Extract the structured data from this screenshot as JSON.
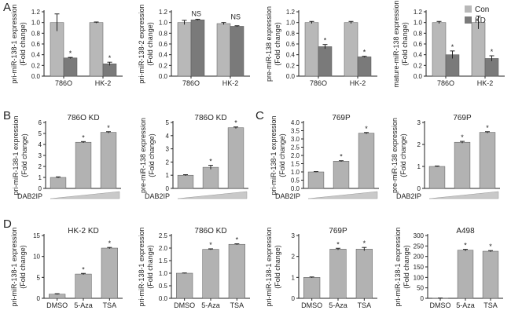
{
  "colors": {
    "con": "#b8b8b8",
    "kd": "#7a7a7a",
    "single": "#b2b2b2",
    "axis": "#222222"
  },
  "legend": {
    "items": [
      "Con",
      "KD"
    ]
  },
  "panel_labels": {
    "A": "A",
    "B": "B",
    "C": "C",
    "D": "D"
  },
  "chart_data": [
    {
      "id": "A1",
      "type": "bar",
      "grouped": true,
      "ylabel": [
        "pri-miR-138-1 expression",
        "(Fold change)"
      ],
      "ylim": [
        0,
        1.2
      ],
      "yticks": [
        "0.0",
        "0.2",
        "0.4",
        "0.6",
        "0.8",
        "1.0",
        "1.2"
      ],
      "categories": [
        "786O",
        "HK-2"
      ],
      "series": [
        {
          "name": "Con",
          "values": [
            1.0,
            1.0
          ],
          "errors": [
            0.16,
            0.01
          ]
        },
        {
          "name": "KD",
          "values": [
            0.34,
            0.23
          ],
          "errors": [
            0.01,
            0.03
          ]
        }
      ],
      "annotations": [
        [
          "",
          ""
        ],
        [
          "*",
          "*"
        ]
      ]
    },
    {
      "id": "A2",
      "type": "bar",
      "grouped": true,
      "ylabel": [
        "pri-miR-138-2 expression",
        "(Fold change)"
      ],
      "ylim": [
        0,
        1.2
      ],
      "yticks": [
        "0.0",
        "0.2",
        "0.4",
        "0.6",
        "0.8",
        "1.0",
        "1.2"
      ],
      "categories": [
        "786O",
        "HK-2"
      ],
      "series": [
        {
          "name": "Con",
          "values": [
            1.0,
            0.98
          ],
          "errors": [
            0.04,
            0.02
          ]
        },
        {
          "name": "KD",
          "values": [
            1.05,
            0.93
          ],
          "errors": [
            0.01,
            0.01
          ]
        }
      ],
      "group_annotations": [
        "NS",
        "NS"
      ]
    },
    {
      "id": "A3",
      "type": "bar",
      "grouped": true,
      "ylabel": [
        "pre-miR-138 expression",
        "(Fold change)"
      ],
      "ylim": [
        0,
        1.2
      ],
      "yticks": [
        "0.0",
        "0.2",
        "0.4",
        "0.6",
        "0.8",
        "1.0",
        "1.2"
      ],
      "categories": [
        "786O",
        "HK-2"
      ],
      "series": [
        {
          "name": "Con",
          "values": [
            1.0,
            1.0
          ],
          "errors": [
            0.02,
            0.02
          ]
        },
        {
          "name": "KD",
          "values": [
            0.55,
            0.36
          ],
          "errors": [
            0.04,
            0.01
          ]
        }
      ],
      "annotations": [
        [
          "",
          ""
        ],
        [
          "*",
          "*"
        ]
      ]
    },
    {
      "id": "A4",
      "type": "bar",
      "grouped": true,
      "ylabel": [
        "mature-miR-138 expression",
        "(Fold change)"
      ],
      "ylim": [
        0,
        1.2
      ],
      "yticks": [
        "0.0",
        "0.2",
        "0.4",
        "0.6",
        "0.8",
        "1.0",
        "1.2"
      ],
      "categories": [
        "786O",
        "HK-2"
      ],
      "series": [
        {
          "name": "Con",
          "values": [
            1.0,
            1.0
          ],
          "errors": [
            0.02,
            0.12
          ]
        },
        {
          "name": "KD",
          "values": [
            0.4,
            0.33
          ],
          "errors": [
            0.07,
            0.05
          ]
        }
      ],
      "annotations": [
        [
          "",
          ""
        ],
        [
          "*",
          "*"
        ]
      ]
    },
    {
      "id": "B1",
      "type": "bar",
      "title": "786O KD",
      "ylabel": [
        "pri-miR-138-1 expression",
        "(Fold change)"
      ],
      "ylim": [
        0,
        6
      ],
      "yticks": [
        "0",
        "1",
        "2",
        "3",
        "4",
        "5",
        "6"
      ],
      "categories": [
        "",
        "",
        ""
      ],
      "values": [
        1.0,
        4.2,
        5.1
      ],
      "errors": [
        0.05,
        0.06,
        0.06
      ],
      "annotations": [
        "",
        "*",
        "*"
      ],
      "gradient_label": "DAB2IP"
    },
    {
      "id": "B2",
      "type": "bar",
      "title": "786O KD",
      "ylabel": [
        "pre-miR-138 expression",
        "(Fold change)"
      ],
      "ylim": [
        0,
        5
      ],
      "yticks": [
        "0",
        "1",
        "2",
        "3",
        "4",
        "5"
      ],
      "categories": [
        "",
        "",
        ""
      ],
      "values": [
        1.0,
        1.6,
        4.6
      ],
      "errors": [
        0.04,
        0.15,
        0.06
      ],
      "annotations": [
        "",
        "*",
        "*"
      ],
      "gradient_label": "DAB2IP"
    },
    {
      "id": "C1",
      "type": "bar",
      "title": "769P",
      "ylabel": [
        "pri-miR-138-1 expression",
        "(Fold change)"
      ],
      "ylim": [
        0,
        4
      ],
      "yticks": [
        "0.0",
        "0.5",
        "1.0",
        "1.5",
        "2.0",
        "2.5",
        "3.0",
        "3.5",
        "4.0"
      ],
      "categories": [
        "",
        "",
        ""
      ],
      "values": [
        1.0,
        1.65,
        3.35
      ],
      "errors": [
        0.02,
        0.03,
        0.04
      ],
      "annotations": [
        "",
        "*",
        "*"
      ],
      "gradient_label": "DAB2IP"
    },
    {
      "id": "C2",
      "type": "bar",
      "title": "769P",
      "ylabel": [
        "pre-miR-138 expression",
        "(Fold change)"
      ],
      "ylim": [
        0,
        3
      ],
      "yticks": [
        "0",
        "1",
        "2",
        "3"
      ],
      "categories": [
        "",
        "",
        ""
      ],
      "values": [
        1.0,
        2.1,
        2.55
      ],
      "errors": [
        0.02,
        0.04,
        0.03
      ],
      "annotations": [
        "",
        "*",
        "*"
      ],
      "gradient_label": "DAB2IP"
    },
    {
      "id": "D1",
      "type": "bar",
      "title": "HK-2 KD",
      "ylabel": [
        "pri-miR-138-1 expression",
        "(Fold change)"
      ],
      "ylim": [
        0,
        15
      ],
      "yticks": [
        "0",
        "5",
        "10",
        "15"
      ],
      "categories": [
        "DMSO",
        "5-Aza",
        "TSA"
      ],
      "values": [
        1.0,
        5.8,
        12.0
      ],
      "errors": [
        0.1,
        0.15,
        0.15
      ],
      "annotations": [
        "",
        "*",
        "*"
      ]
    },
    {
      "id": "D2",
      "type": "bar",
      "title": "786O KD",
      "ylabel": [
        "pri-miR-138-1 expression",
        "(Fold change)"
      ],
      "ylim": [
        0,
        2.5
      ],
      "yticks": [
        "0.0",
        "0.5",
        "1.0",
        "1.5",
        "2.0",
        "2.5"
      ],
      "categories": [
        "DMSO",
        "5-Aza",
        "TSA"
      ],
      "values": [
        1.0,
        1.95,
        2.15
      ],
      "errors": [
        0.01,
        0.02,
        0.02
      ],
      "annotations": [
        "",
        "*",
        "*"
      ]
    },
    {
      "id": "D3",
      "type": "bar",
      "title": "769P",
      "ylabel": [
        "pri-miR-138-1 expression",
        "(Fold change)"
      ],
      "ylim": [
        0,
        3
      ],
      "yticks": [
        "0",
        "1",
        "2",
        "3"
      ],
      "categories": [
        "DMSO",
        "5-Aza",
        "TSA"
      ],
      "values": [
        1.0,
        2.35,
        2.35
      ],
      "errors": [
        0.02,
        0.04,
        0.08
      ],
      "annotations": [
        "",
        "*",
        "*"
      ]
    },
    {
      "id": "D4",
      "type": "bar",
      "title": "A498",
      "ylabel": [
        "pri-miR-138-1 expression",
        "(Fold change)"
      ],
      "ylim": [
        0,
        300
      ],
      "yticks": [
        "0",
        "50",
        "100",
        "150",
        "200",
        "250",
        "300"
      ],
      "categories": [
        "DMSO",
        "5-Aza",
        "TSA"
      ],
      "values": [
        1.0,
        230,
        225
      ],
      "errors": [
        0.5,
        4,
        3
      ],
      "annotations": [
        "",
        "*",
        "*"
      ]
    }
  ]
}
